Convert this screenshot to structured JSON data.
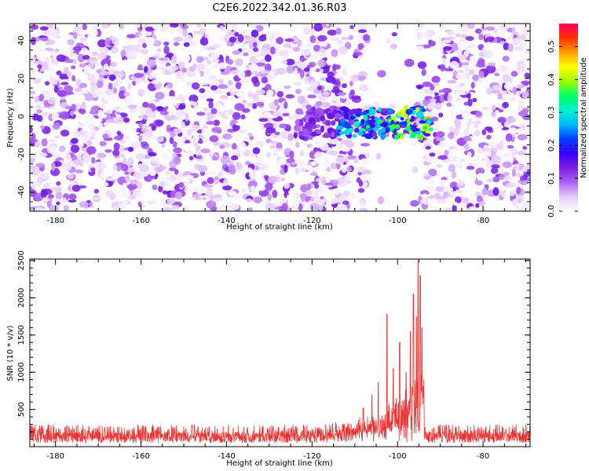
{
  "figure": {
    "title": "C2E6.2022.342.01.36.R03"
  },
  "chart_data": [
    {
      "type": "heatmap",
      "title": "C2E6.2022.342.01.36.R03",
      "xlabel": "Height of straight line (km)",
      "ylabel": "Frequency (Hz)",
      "xlim": [
        -186,
        -69
      ],
      "ylim": [
        -50,
        49
      ],
      "x_ticks": [
        -180,
        -160,
        -140,
        -120,
        -100,
        -80
      ],
      "y_ticks": [
        -40,
        -20,
        0,
        20,
        40
      ],
      "colorbar": {
        "label": "Normalized spectral amplitude",
        "range": [
          0,
          0.57
        ],
        "ticks": [
          0.0,
          0.1,
          0.2,
          0.3,
          0.4,
          0.5
        ],
        "colors": [
          "#ffffff",
          "#e4cbfa",
          "#a95ff0",
          "#7a1fe0",
          "#3a00ff",
          "#0040ff",
          "#00b8ff",
          "#00f0d0",
          "#00ff60",
          "#a0ff00",
          "#ffff00",
          "#ffa000",
          "#ff3000",
          "#ff0060"
        ]
      },
      "bright_band": {
        "x_range": [
          -114,
          -94
        ],
        "frequency_center": -3,
        "peak_amplitude": 0.5,
        "description_free": true
      },
      "empty_region": {
        "x_range": [
          -107,
          -95
        ],
        "frequency_excluded": [
          -12,
          6
        ]
      },
      "background_amplitude": [
        0.0,
        0.15
      ]
    },
    {
      "type": "line",
      "xlabel": "Height of straight line (km)",
      "ylabel": "SNR (10 * v/v)",
      "xlim": [
        -186,
        -69
      ],
      "ylim": [
        0,
        2520
      ],
      "x_ticks": [
        -180,
        -160,
        -140,
        -120,
        -100,
        -80
      ],
      "y_ticks": [
        500,
        1000,
        1500,
        2000,
        2500
      ],
      "line_color": "#ee3333",
      "baseline_range": [
        50,
        300
      ],
      "peaks": [
        {
          "x": -108,
          "y": 520
        },
        {
          "x": -106,
          "y": 700
        },
        {
          "x": -104.5,
          "y": 860
        },
        {
          "x": -102.5,
          "y": 1780
        },
        {
          "x": -101,
          "y": 1050
        },
        {
          "x": -99.5,
          "y": 1400
        },
        {
          "x": -98,
          "y": 1000
        },
        {
          "x": -97,
          "y": 1550
        },
        {
          "x": -96.3,
          "y": 2050
        },
        {
          "x": -95.6,
          "y": 1750
        },
        {
          "x": -95.2,
          "y": 2500
        },
        {
          "x": -94.7,
          "y": 2300
        },
        {
          "x": -94.3,
          "y": 1600
        }
      ],
      "drop_x": -93.8
    }
  ]
}
